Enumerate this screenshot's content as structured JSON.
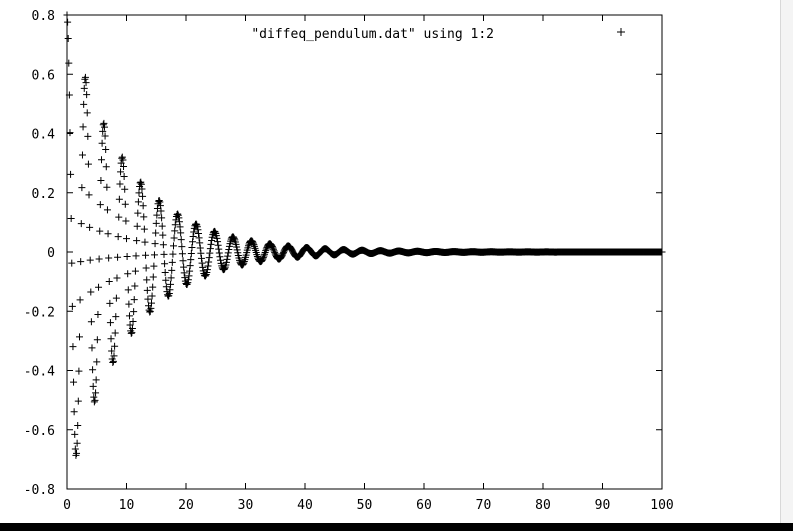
{
  "window": {
    "background": "#ffffff",
    "frame_color": "#000000",
    "strip_color": "#000000"
  },
  "chart_data": {
    "type": "scatter",
    "title": "",
    "xlabel": "",
    "ylabel": "",
    "xlim": [
      0,
      100
    ],
    "ylim": [
      -0.8,
      0.8
    ],
    "x_ticks": [
      0,
      10,
      20,
      30,
      40,
      50,
      60,
      70,
      80,
      90,
      100
    ],
    "y_ticks": [
      -0.8,
      -0.6,
      -0.4,
      -0.2,
      0,
      0.2,
      0.4,
      0.6,
      0.8
    ],
    "x_tick_labels": [
      "0",
      "10",
      "20",
      "30",
      "40",
      "50",
      "60",
      "70",
      "80",
      "90",
      "100"
    ],
    "y_tick_labels": [
      "-0.8",
      "-0.6",
      "-0.4",
      "-0.2",
      "0",
      "0.2",
      "0.4",
      "0.6",
      "0.8"
    ],
    "grid": false,
    "legend_position": "top-right",
    "marker_color": "#000000",
    "series": [
      {
        "name": "\"diffeq_pendulum.dat\" using 1:2",
        "marker": "plus",
        "x_start": 0,
        "x_end": 100,
        "x_step": 0.1,
        "initial_amplitude": 0.8,
        "period": 3.1,
        "decay_rate": 0.0985
      }
    ]
  }
}
